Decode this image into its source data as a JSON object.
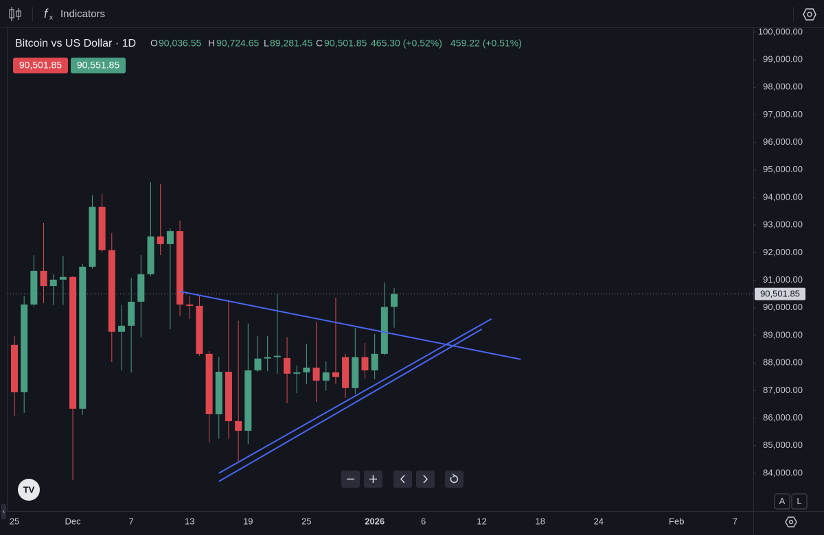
{
  "toolbar": {
    "indicators": "Indicators"
  },
  "chart_data": {
    "type": "candlestick",
    "header": {
      "title": "Bitcoin vs US Dollar · 1D",
      "open_label": "O",
      "open": "90,036.55",
      "high_label": "H",
      "high": "90,724.65",
      "low_label": "L",
      "low": "89,281.45",
      "close_label": "C",
      "close": "90,501.85",
      "change": "465.30 (+0.52%)",
      "change_alt": "459.22 (+0.51%)"
    },
    "bid": "90,501.85",
    "ask": "90,551.85",
    "categories": [
      "25",
      null,
      null,
      null,
      null,
      null,
      "Dec",
      null,
      null,
      null,
      null,
      null,
      "7",
      null,
      null,
      null,
      null,
      null,
      "13",
      null,
      null,
      null,
      null,
      null,
      "19",
      null,
      null,
      null,
      null,
      null,
      "25",
      null,
      null,
      null,
      null,
      null,
      null,
      "2026",
      null,
      null,
      null,
      null,
      "6",
      null,
      null,
      null,
      null,
      null,
      "12",
      null,
      null,
      null,
      null,
      null,
      "18",
      null,
      null,
      null,
      null,
      null,
      "24",
      null,
      null,
      null,
      null,
      null,
      null,
      null,
      "Feb",
      null,
      null,
      null,
      null,
      null,
      "7"
    ],
    "open": [
      88655,
      86940,
      90120,
      91340,
      90790,
      91020,
      91120,
      86340,
      91490,
      93660,
      92090,
      89130,
      89350,
      90220,
      91220,
      92590,
      92310,
      92780,
      90120,
      90070,
      88330,
      86140,
      87680,
      85890,
      85540,
      87730,
      88160,
      88210,
      88180,
      87610,
      87660,
      87830,
      87360,
      87660,
      88210,
      87090,
      88210,
      87730,
      88330,
      90036.55,
      null,
      null,
      null,
      null,
      null,
      null,
      null,
      null,
      null,
      null,
      null,
      null,
      null,
      null,
      null,
      null,
      null,
      null,
      null,
      null,
      null,
      null,
      null,
      null,
      null,
      null,
      null,
      null,
      null,
      null,
      null,
      null,
      null,
      null,
      null
    ],
    "high": [
      88980,
      90420,
      91910,
      93080,
      91220,
      91890,
      91150,
      91590,
      94080,
      94130,
      92710,
      90100,
      91090,
      91910,
      94550,
      94500,
      92880,
      93160,
      90420,
      90420,
      88430,
      88230,
      90270,
      89530,
      89430,
      88980,
      88980,
      90520,
      88930,
      87910,
      88700,
      89480,
      88060,
      90370,
      88330,
      89280,
      88730,
      89050,
      90920,
      90724.65,
      null,
      null,
      null,
      null,
      null,
      null,
      null,
      null,
      null,
      null,
      null,
      null,
      null,
      null,
      null,
      null,
      null,
      null,
      null,
      null,
      null,
      null,
      null,
      null,
      null,
      null,
      null,
      null,
      null,
      null,
      null,
      null,
      null,
      null,
      null
    ],
    "low": [
      86070,
      86190,
      90050,
      90170,
      90100,
      90100,
      83750,
      86120,
      91420,
      92010,
      88030,
      87730,
      87660,
      88930,
      91150,
      91910,
      89230,
      89700,
      89600,
      88260,
      85120,
      85250,
      85250,
      84400,
      85050,
      87680,
      87700,
      87610,
      86540,
      86910,
      87240,
      86590,
      86990,
      87240,
      86740,
      86870,
      87440,
      87410,
      88280,
      89281.45,
      null,
      null,
      null,
      null,
      null,
      null,
      null,
      null,
      null,
      null,
      null,
      null,
      null,
      null,
      null,
      null,
      null,
      null,
      null,
      null,
      null,
      null,
      null,
      null,
      null,
      null,
      null,
      null,
      null,
      null,
      null,
      null,
      null,
      null,
      null
    ],
    "close": [
      86940,
      90120,
      91340,
      90790,
      91020,
      91120,
      86340,
      91490,
      93660,
      92090,
      89130,
      89350,
      90220,
      91220,
      92590,
      92310,
      92780,
      90120,
      90070,
      88330,
      86140,
      87680,
      85890,
      85540,
      87730,
      88160,
      88210,
      88260,
      87610,
      87660,
      87830,
      87360,
      87660,
      87490,
      87090,
      88210,
      87730,
      88330,
      90030,
      90501.85,
      null,
      null,
      null,
      null,
      null,
      null,
      null,
      null,
      null,
      null,
      null,
      null,
      null,
      null,
      null,
      null,
      null,
      null,
      null,
      null,
      null,
      null,
      null,
      null,
      null,
      null,
      null,
      null,
      null,
      null,
      null,
      null,
      null,
      null,
      null
    ],
    "up_color": "#4a9e82",
    "down_color": "#e0484f",
    "ylim": [
      82630,
      100170
    ],
    "yticks": [
      {
        "value": 84000,
        "label": "84,000.00"
      },
      {
        "value": 85000,
        "label": "85,000.00"
      },
      {
        "value": 86000,
        "label": "86,000.00"
      },
      {
        "value": 87000,
        "label": "87,000.00"
      },
      {
        "value": 88000,
        "label": "88,000.00"
      },
      {
        "value": 89000,
        "label": "89,000.00"
      },
      {
        "value": 90000,
        "label": "90,000.00"
      },
      {
        "value": 91000,
        "label": "91,000.00"
      },
      {
        "value": 92000,
        "label": "92,000.00"
      },
      {
        "value": 93000,
        "label": "93,000.00"
      },
      {
        "value": 94000,
        "label": "94,000.00"
      },
      {
        "value": 95000,
        "label": "95,000.00"
      },
      {
        "value": 96000,
        "label": "96,000.00"
      },
      {
        "value": 97000,
        "label": "97,000.00"
      },
      {
        "value": 98000,
        "label": "98,000.00"
      },
      {
        "value": 99000,
        "label": "99,000.00"
      },
      {
        "value": 100000,
        "label": "100,000.00"
      }
    ],
    "grid": false,
    "last_price": {
      "value": 90501.85,
      "label": "90,501.85"
    },
    "trendlines": [
      {
        "color": "#4a66f0",
        "x": [
          17,
          52
        ],
        "y": [
          90595,
          88131
        ]
      },
      {
        "color": "#4a66f0",
        "x": [
          21,
          49
        ],
        "y": [
          84001,
          89600
        ]
      },
      {
        "color": "#4a66f0",
        "x": [
          21,
          48
        ],
        "y": [
          83702,
          89226
        ]
      }
    ]
  },
  "controls": {
    "auto": "A",
    "log": "L"
  }
}
